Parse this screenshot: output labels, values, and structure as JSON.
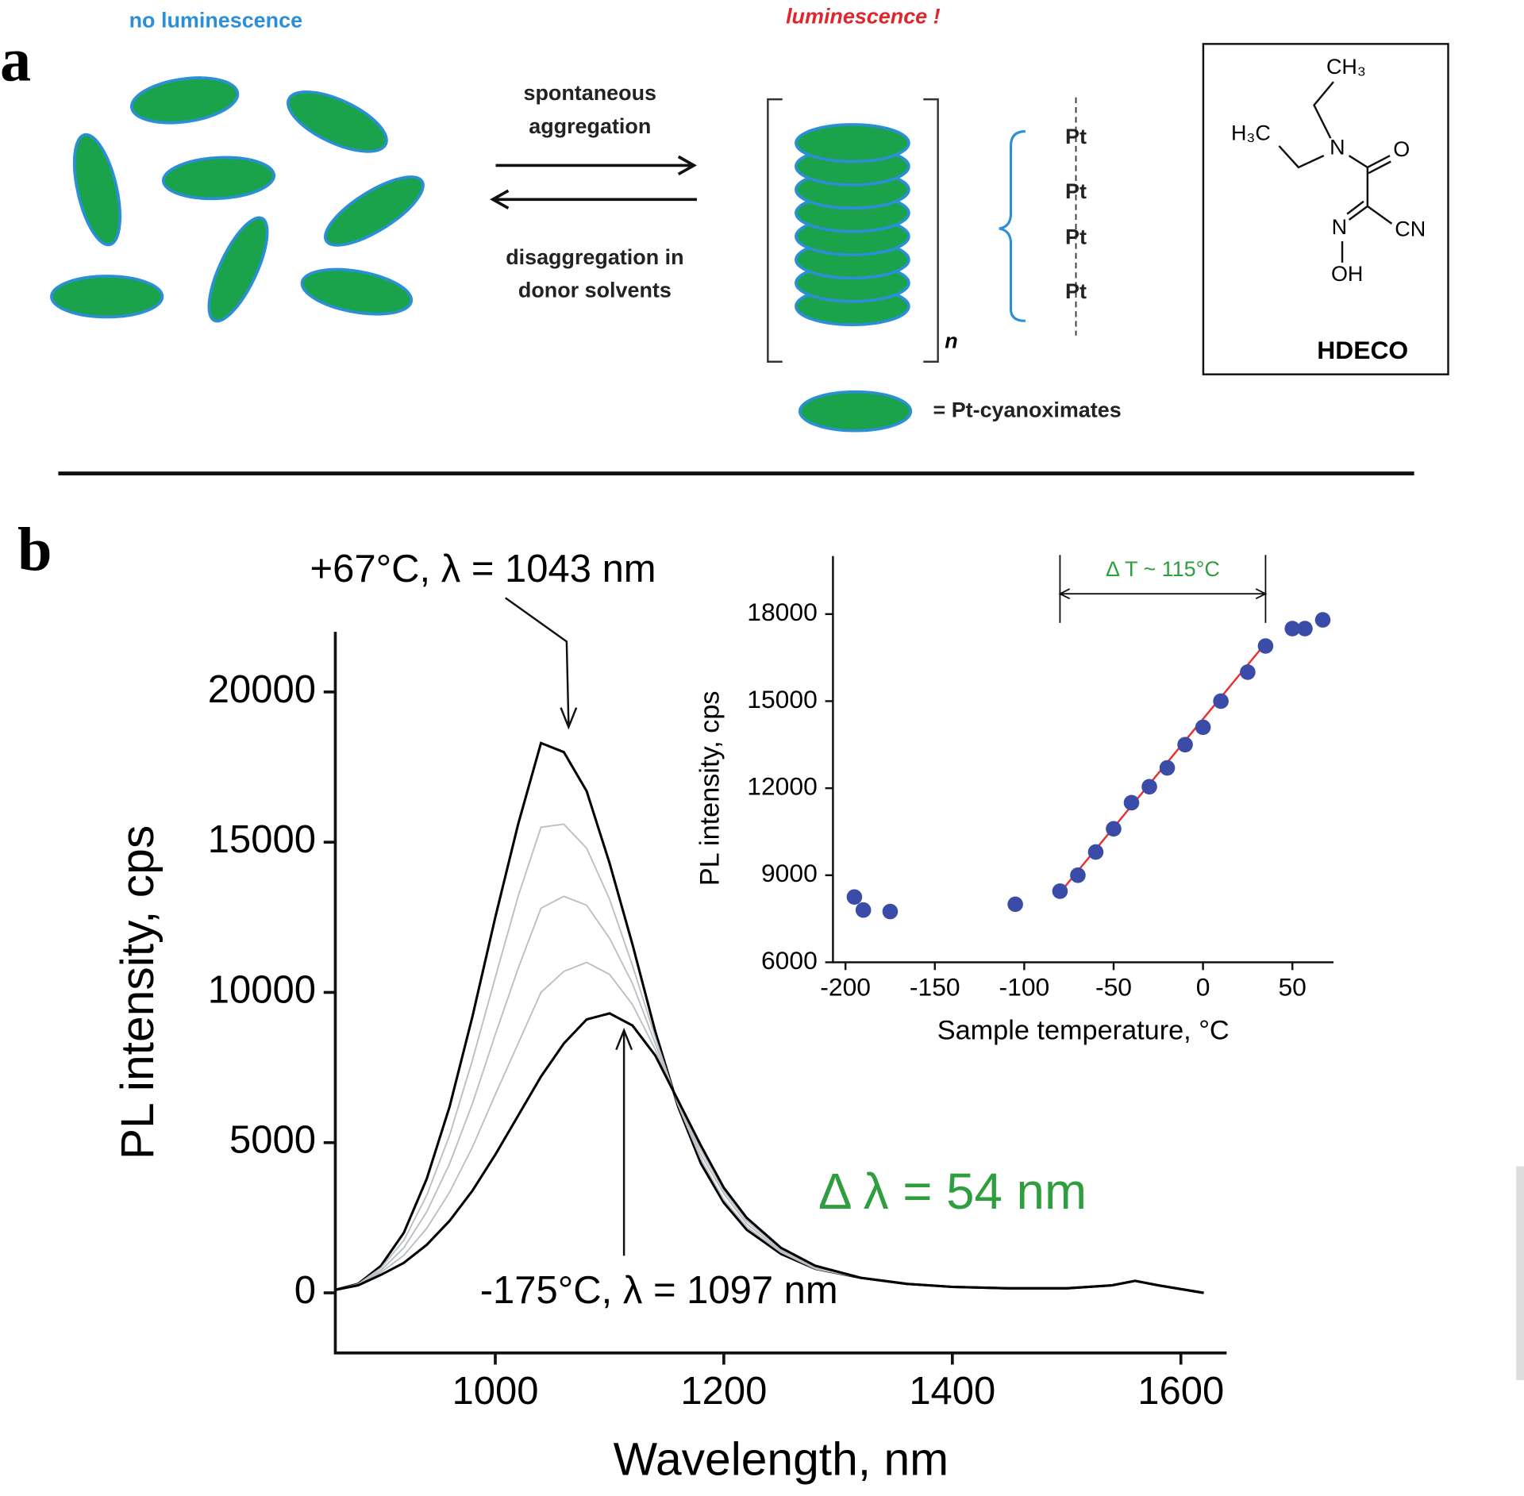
{
  "panel_a": {
    "label": "a",
    "left_caption": "no luminescence",
    "right_caption": "luminescence !",
    "forward": [
      "spontaneous",
      "aggregation"
    ],
    "backward": [
      "disaggregation in",
      "donor solvents"
    ],
    "subscript": "n",
    "pt_labels": [
      "Pt",
      "Pt",
      "Pt",
      "Pt"
    ],
    "legend": "= Pt-cyanoximates",
    "structure": {
      "atoms": [
        "CH₃",
        "H₃C",
        "N",
        "O",
        "N",
        "CN",
        "OH"
      ],
      "name": "HDECO"
    }
  },
  "panel_b_label": "b",
  "chart_data": [
    {
      "type": "line",
      "xlabel": "Wavelength, nm",
      "ylabel": "PL intensity, cps",
      "x": [
        860,
        880,
        900,
        920,
        940,
        960,
        980,
        1000,
        1020,
        1040,
        1060,
        1080,
        1100,
        1120,
        1140,
        1160,
        1180,
        1200,
        1220,
        1250,
        1280,
        1320,
        1360,
        1400,
        1450,
        1500,
        1540,
        1560,
        1580,
        1620
      ],
      "series": [
        {
          "color": "#000000",
          "values": [
            100,
            300,
            900,
            2000,
            3800,
            6200,
            9200,
            12500,
            15600,
            18300,
            18000,
            16700,
            14300,
            11600,
            8700,
            6200,
            4300,
            3000,
            2100,
            1300,
            800,
            500,
            300,
            200,
            150,
            150,
            250,
            400,
            250,
            0
          ]
        },
        {
          "color": "#b9bec4",
          "values": [
            100,
            290,
            830,
            1750,
            3250,
            5250,
            7750,
            10500,
            13200,
            15500,
            15600,
            14800,
            13100,
            10900,
            8500,
            6250,
            4450,
            3100,
            2200,
            1350,
            800,
            500,
            300,
            200,
            150,
            150,
            250,
            400,
            250,
            0
          ]
        },
        {
          "color": "#b9bec4",
          "values": [
            100,
            280,
            750,
            1500,
            2700,
            4300,
            6300,
            8600,
            10800,
            12800,
            13200,
            12900,
            11800,
            10300,
            8300,
            6300,
            4600,
            3300,
            2300,
            1400,
            850,
            500,
            300,
            200,
            150,
            150,
            250,
            400,
            250,
            0
          ]
        },
        {
          "color": "#b9bec4",
          "values": [
            100,
            260,
            680,
            1250,
            2150,
            3350,
            4850,
            6600,
            8300,
            10000,
            10700,
            11000,
            10600,
            9600,
            8100,
            6350,
            4750,
            3400,
            2400,
            1450,
            900,
            500,
            300,
            200,
            150,
            150,
            250,
            400,
            250,
            0
          ]
        },
        {
          "color": "#000000",
          "values": [
            100,
            250,
            600,
            1000,
            1600,
            2400,
            3400,
            4600,
            5900,
            7200,
            8300,
            9100,
            9300,
            8900,
            7900,
            6400,
            4900,
            3500,
            2500,
            1500,
            900,
            500,
            300,
            200,
            150,
            150,
            250,
            400,
            250,
            0
          ]
        }
      ],
      "xlim": [
        860,
        1640
      ],
      "ylim": [
        -2000,
        22000
      ],
      "xticks": [
        1000,
        1200,
        1400,
        1600
      ],
      "yticks": [
        0,
        5000,
        10000,
        15000,
        20000
      ],
      "annotations": [
        "+67°C, λ = 1043 nm",
        "-175°C, λ = 1097 nm",
        "Δ λ = 54 nm"
      ]
    },
    {
      "type": "scatter",
      "xlabel": "Sample temperature, °C",
      "ylabel": "PL intensity, cps",
      "x": [
        -195,
        -190,
        -175,
        -105,
        -80,
        -70,
        -60,
        -50,
        -40,
        -30,
        -20,
        -10,
        0,
        10,
        25,
        35,
        50,
        57,
        67
      ],
      "values": [
        8250,
        7800,
        7750,
        8000,
        8450,
        9000,
        9800,
        10600,
        11500,
        12050,
        12700,
        13500,
        14100,
        15000,
        16000,
        16900,
        17500,
        17500,
        17800
      ],
      "color": "#3b4ba8",
      "fit": {
        "x": [
          -80,
          35
        ],
        "values": [
          8400,
          17000
        ],
        "color": "#e83030"
      },
      "bracket": {
        "x": [
          -80,
          35
        ],
        "y": 18700,
        "label": "Δ T ~ 115°C"
      },
      "xlim": [
        -207,
        73
      ],
      "ylim": [
        6000,
        20000
      ],
      "xticks": [
        -200,
        -150,
        -100,
        -50,
        0,
        50
      ],
      "yticks": [
        6000,
        9000,
        12000,
        15000,
        18000
      ]
    }
  ]
}
